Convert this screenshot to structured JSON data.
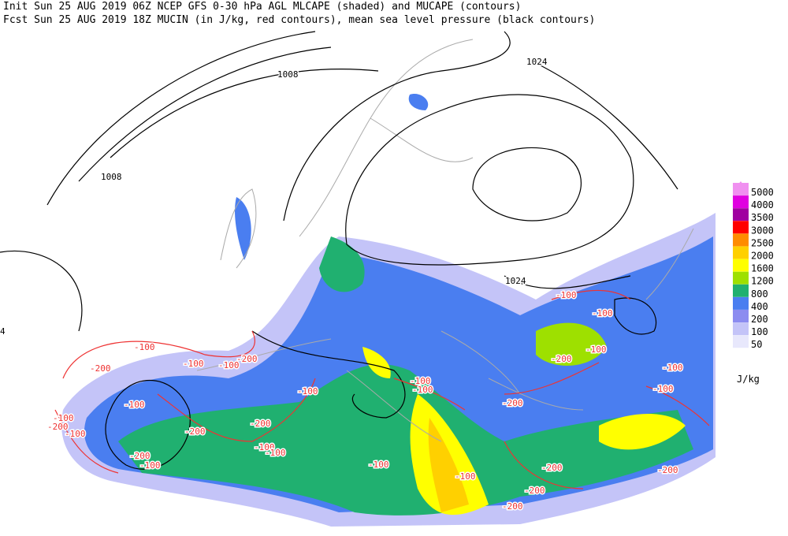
{
  "header": {
    "line1": "Init  Sun 25 AUG 2019 06Z  NCEP GFS 0-30 hPa AGL MLCAPE (shaded) and MUCAPE (contours)",
    "line2": "Fcst Sun 25 AUG 2019 18Z  MUCIN (in J/kg, red contours), mean sea level pressure (black contours)"
  },
  "legend": {
    "unit": "J/kg",
    "levels": [
      {
        "label": "5000",
        "color": "#f090f0"
      },
      {
        "label": "4000",
        "color": "#e000e0"
      },
      {
        "label": "3500",
        "color": "#a000a0"
      },
      {
        "label": "3000",
        "color": "#ff0000"
      },
      {
        "label": "2500",
        "color": "#ff8c00"
      },
      {
        "label": "2000",
        "color": "#ffd000"
      },
      {
        "label": "1600",
        "color": "#ffff00"
      },
      {
        "label": "1200",
        "color": "#9ee000"
      },
      {
        "label": "800",
        "color": "#20b070"
      },
      {
        "label": "400",
        "color": "#4a7ef0"
      },
      {
        "label": "200",
        "color": "#8c8cf0"
      },
      {
        "label": "100",
        "color": "#c4c4f8"
      },
      {
        "label": "50",
        "color": "#e8e8fc"
      }
    ]
  },
  "pressure_labels": [
    "1008",
    "1008",
    "1024",
    "1024",
    "4"
  ],
  "cin_labels": [
    "-100",
    "-200",
    "-100",
    "-100",
    "-200",
    "-100",
    "-100",
    "-100",
    "-200",
    "-100",
    "-200",
    "-200",
    "-100",
    "-100",
    "-200",
    "-100",
    "-100",
    "-100",
    "-100",
    "-100",
    "-200",
    "-100",
    "-100",
    "-100",
    "-200",
    "-100",
    "-100",
    "-200",
    "-200",
    "-200",
    "-200"
  ]
}
